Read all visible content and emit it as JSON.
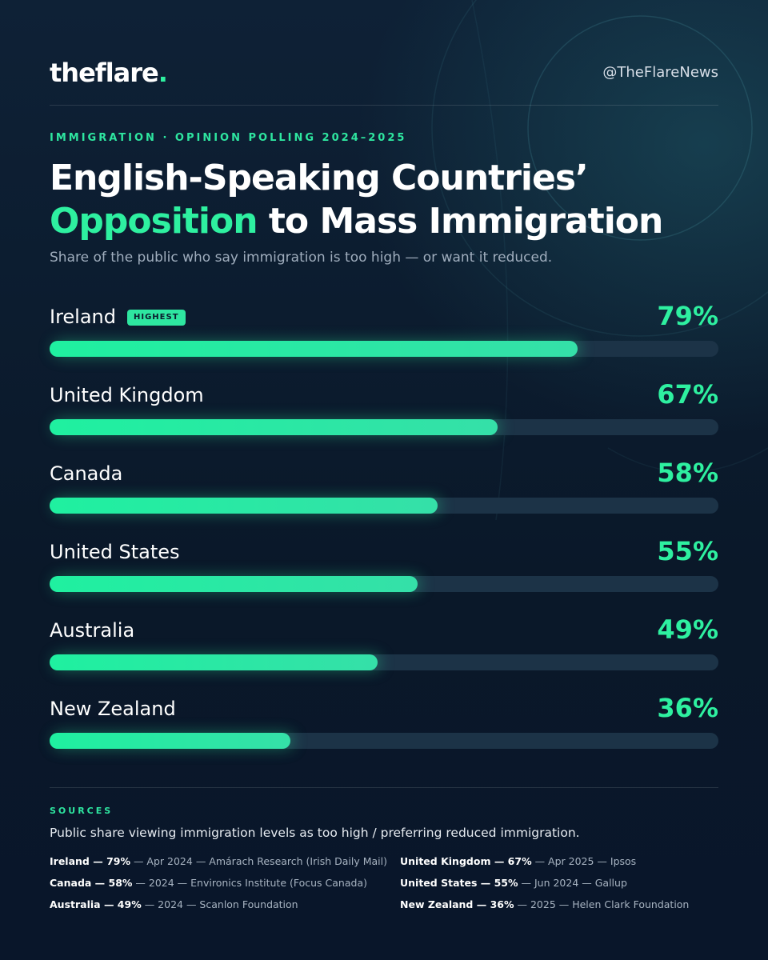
{
  "brand": {
    "name": "theflare",
    "dot": ".",
    "handle": "@TheFlareNews"
  },
  "kicker": "IMMIGRATION · OPINION POLLING 2024–2025",
  "title": {
    "line1": "English-Speaking Countries’",
    "accent": "Opposition",
    "rest": " to Mass Immigration"
  },
  "subtitle": "Share of the public who say immigration is too high — or want it reduced.",
  "chart_data": {
    "type": "bar",
    "orientation": "horizontal",
    "categories": [
      "Ireland",
      "United Kingdom",
      "Canada",
      "United States",
      "Australia",
      "New Zealand"
    ],
    "values": [
      79,
      67,
      58,
      55,
      49,
      36
    ],
    "value_labels": [
      "79%",
      "67%",
      "58%",
      "55%",
      "49%",
      "36%"
    ],
    "xlim": [
      0,
      100
    ],
    "badge": {
      "category": "Ireland",
      "text": "HIGHEST"
    },
    "colors": {
      "bar": "#2ef0a0",
      "track": "#1c3347",
      "value": "#2ef0a0"
    }
  },
  "sources": {
    "title": "SOURCES",
    "note": "Public share viewing immigration levels as too high / preferring reduced immigration.",
    "items": [
      {
        "strong": "Ireland — 79%",
        "rest": " — Apr 2024 — Amárach Research (Irish Daily Mail)"
      },
      {
        "strong": "United Kingdom — 67%",
        "rest": " — Apr 2025 — Ipsos"
      },
      {
        "strong": "Canada — 58%",
        "rest": " — 2024 — Environics Institute (Focus Canada)"
      },
      {
        "strong": "United States — 55%",
        "rest": " — Jun 2024 — Gallup"
      },
      {
        "strong": "Australia — 49%",
        "rest": " — 2024 — Scanlon Foundation"
      },
      {
        "strong": "New Zealand — 36%",
        "rest": " — 2025 — Helen Clark Foundation"
      }
    ]
  }
}
